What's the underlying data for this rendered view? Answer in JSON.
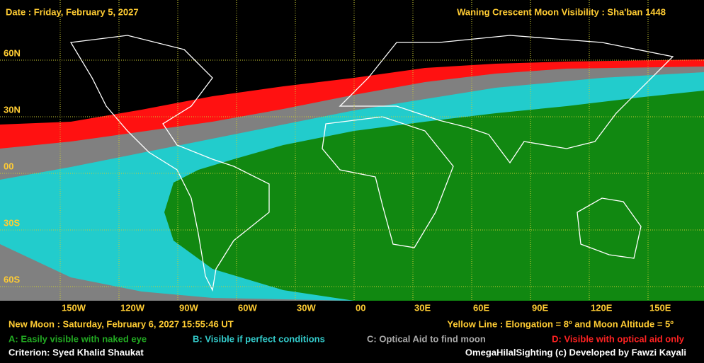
{
  "header": {
    "date": "Date : Friday, February 5, 2027",
    "title": "Waning Crescent Moon Visibility : Sha'ban 1448"
  },
  "map": {
    "lat_labels": [
      "60N",
      "30N",
      "00",
      "30S",
      "60S"
    ],
    "lon_labels": [
      "150W",
      "120W",
      "90W",
      "60W",
      "30W",
      "00",
      "30E",
      "60E",
      "90E",
      "120E",
      "150E"
    ]
  },
  "footer": {
    "new_moon": "New Moon : Saturday, February 6, 2027  15:55:46  UT",
    "yellow_line": "Yellow Line : Elongation = 8º  and Moon Altitude = 5º",
    "criterion": "Criterion: Syed Khalid Shaukat",
    "credit": "OmegaHilalSighting  (c)  Developed by Fawzi Kayali"
  },
  "legend": {
    "items": [
      "A: Easily visible with naked eye",
      "B: Visible if perfect conditions",
      "C: Optical Aid to find moon",
      "D: Visible with optical aid only"
    ]
  }
}
